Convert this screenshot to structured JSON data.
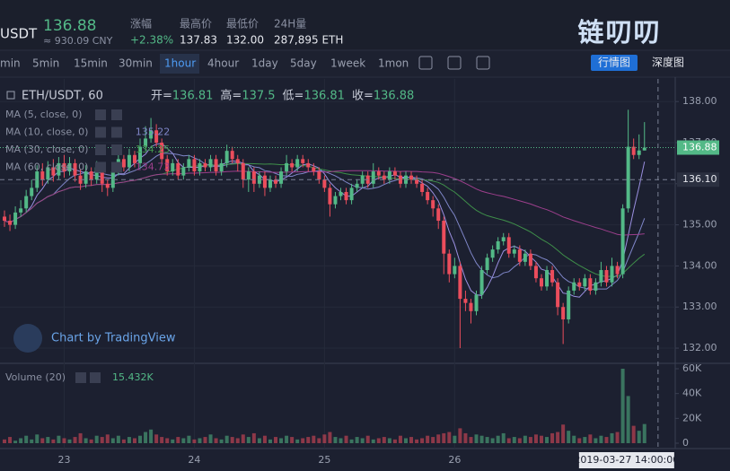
{
  "header": {
    "pair": "USDT",
    "price": "136.88",
    "cny": "≈ 930.09 CNY",
    "stats": [
      {
        "label": "涨幅",
        "value": "+2.38%"
      },
      {
        "label": "最高价",
        "value": "137.83"
      },
      {
        "label": "最低价",
        "value": "132.00"
      },
      {
        "label": "24H量",
        "value": "287,895 ETH"
      }
    ],
    "logo": "链叨叨"
  },
  "toolbar": {
    "intervals": [
      "min",
      "5min",
      "15min",
      "30min",
      "1hour",
      "4hour",
      "1day",
      "5day",
      "1week",
      "1mon"
    ],
    "active": "1hour",
    "buttons": [
      "行情图",
      "深度图"
    ]
  },
  "chart_data": {
    "type": "candlestick",
    "title": "ETH/USDT, 60",
    "watermark": "Chart by TradingView",
    "legend": [
      {
        "label": "开=",
        "key": "open"
      },
      {
        "label": "高=",
        "key": "high"
      },
      {
        "label": "低=",
        "key": "low"
      },
      {
        "label": "收=",
        "key": "close"
      }
    ],
    "up_color": "#53b987",
    "down_color": "#eb4d5c",
    "open": [
      135.2,
      135.1,
      135.0,
      135.3,
      135.4,
      135.7,
      135.9,
      136.3,
      136.1,
      136.4,
      136.2,
      136.5,
      136.3,
      136.5,
      136.2,
      136.0,
      136.3,
      136.1,
      136.4,
      136.0,
      135.9,
      136.3,
      136.6,
      136.4,
      136.7,
      136.5,
      136.9,
      137.1,
      137.3,
      137.0,
      136.6,
      136.3,
      136.5,
      136.2,
      136.4,
      136.6,
      136.3,
      136.5,
      136.4,
      136.6,
      136.3,
      136.5,
      136.8,
      136.6,
      136.5,
      136.1,
      136.3,
      136.0,
      136.2,
      135.9,
      136.1,
      136.0,
      136.3,
      136.5,
      136.4,
      136.6,
      136.5,
      136.4,
      136.3,
      136.1,
      135.9,
      135.5,
      135.7,
      135.8,
      135.6,
      135.9,
      136.0,
      136.2,
      136.0,
      136.3,
      136.2,
      136.1,
      136.3,
      136.2,
      136.0,
      136.2,
      136.1,
      136.0,
      135.8,
      135.6,
      135.4,
      135.1,
      134.3,
      133.8,
      134.0,
      133.2,
      133.1,
      132.9,
      133.3,
      133.9,
      134.2,
      134.4,
      134.6,
      134.7,
      134.3,
      134.4,
      134.1,
      134.3,
      134.0,
      133.7,
      133.5,
      133.9,
      133.6,
      133.0,
      132.7,
      133.4,
      133.6,
      133.5,
      133.7,
      133.4,
      133.6,
      133.9,
      133.6,
      134.0,
      133.8,
      135.4,
      136.9,
      136.7,
      136.81
    ],
    "high": [
      135.35,
      135.25,
      135.45,
      135.6,
      135.85,
      136.1,
      136.45,
      136.5,
      136.55,
      136.6,
      136.65,
      136.7,
      136.65,
      136.6,
      136.35,
      136.45,
      136.4,
      136.55,
      136.5,
      136.1,
      136.4,
      136.75,
      136.7,
      136.85,
      136.8,
      137.1,
      137.4,
      137.6,
      137.45,
      137.1,
      136.7,
      136.6,
      136.6,
      136.5,
      136.7,
      136.7,
      136.6,
      136.6,
      136.7,
      136.7,
      136.6,
      136.95,
      136.9,
      136.7,
      136.6,
      136.4,
      136.4,
      136.3,
      136.3,
      136.2,
      136.2,
      136.4,
      136.7,
      136.6,
      136.7,
      136.7,
      136.6,
      136.5,
      136.4,
      136.2,
      136.0,
      135.8,
      135.9,
      135.9,
      136.0,
      136.1,
      136.3,
      136.3,
      136.5,
      136.4,
      136.3,
      136.4,
      136.4,
      136.3,
      136.3,
      136.3,
      136.2,
      136.1,
      135.9,
      135.7,
      135.5,
      135.2,
      134.4,
      134.2,
      134.1,
      133.4,
      133.2,
      133.4,
      134.0,
      134.3,
      134.5,
      134.7,
      134.8,
      134.8,
      134.5,
      134.5,
      134.4,
      134.4,
      134.1,
      133.8,
      134.0,
      134.0,
      133.7,
      133.1,
      133.5,
      133.7,
      133.7,
      133.8,
      133.8,
      133.7,
      134.1,
      134.0,
      134.2,
      134.1,
      135.5,
      137.8,
      137.1,
      137.2,
      137.5
    ],
    "low": [
      134.95,
      134.85,
      134.9,
      135.2,
      135.3,
      135.6,
      135.8,
      135.95,
      136.0,
      136.05,
      136.1,
      136.15,
      136.2,
      136.05,
      135.85,
      135.9,
      135.95,
      136.0,
      135.8,
      135.7,
      135.8,
      136.2,
      136.3,
      136.3,
      136.4,
      136.4,
      136.8,
      137.0,
      136.9,
      136.5,
      136.2,
      136.2,
      136.1,
      136.1,
      136.3,
      136.2,
      136.2,
      136.3,
      136.3,
      136.2,
      136.2,
      136.4,
      136.5,
      136.3,
      135.9,
      135.8,
      135.8,
      135.9,
      135.7,
      135.8,
      135.9,
      135.9,
      136.2,
      136.3,
      136.3,
      136.4,
      136.3,
      136.2,
      136.0,
      135.8,
      135.2,
      135.4,
      135.6,
      135.5,
      135.5,
      135.8,
      135.9,
      135.9,
      135.9,
      136.1,
      136.0,
      136.0,
      136.1,
      135.9,
      135.9,
      136.0,
      135.9,
      135.7,
      135.5,
      135.2,
      134.9,
      133.8,
      133.6,
      133.7,
      132.0,
      132.9,
      132.6,
      132.8,
      133.2,
      133.8,
      134.1,
      134.3,
      134.5,
      134.2,
      134.2,
      134.0,
      134.0,
      133.9,
      133.6,
      133.4,
      133.4,
      133.5,
      132.8,
      132.1,
      132.6,
      133.3,
      133.4,
      133.4,
      133.3,
      133.3,
      133.5,
      133.5,
      133.5,
      133.7,
      133.7,
      135.3,
      136.6,
      136.6,
      136.81
    ],
    "close": [
      135.1,
      135.0,
      135.3,
      135.4,
      135.7,
      135.9,
      136.3,
      136.1,
      136.4,
      136.2,
      136.5,
      136.3,
      136.5,
      136.2,
      136.0,
      136.3,
      136.1,
      136.4,
      136.0,
      135.9,
      136.3,
      136.6,
      136.4,
      136.7,
      136.5,
      136.9,
      137.1,
      137.3,
      137.0,
      136.6,
      136.3,
      136.5,
      136.2,
      136.4,
      136.6,
      136.3,
      136.5,
      136.4,
      136.6,
      136.3,
      136.5,
      136.8,
      136.6,
      136.5,
      136.1,
      136.3,
      136.0,
      136.2,
      135.9,
      136.1,
      136.0,
      136.3,
      136.5,
      136.4,
      136.6,
      136.5,
      136.4,
      136.3,
      136.1,
      135.9,
      135.5,
      135.7,
      135.8,
      135.6,
      135.9,
      136.0,
      136.2,
      136.0,
      136.3,
      136.2,
      136.1,
      136.3,
      136.2,
      136.0,
      136.2,
      136.1,
      136.0,
      135.8,
      135.6,
      135.4,
      135.1,
      134.3,
      133.8,
      134.0,
      133.2,
      133.1,
      132.9,
      133.3,
      133.9,
      134.2,
      134.4,
      134.6,
      134.7,
      134.3,
      134.4,
      134.1,
      134.3,
      134.0,
      133.7,
      133.5,
      133.9,
      133.6,
      133.0,
      132.7,
      133.4,
      133.6,
      133.5,
      133.7,
      133.4,
      133.6,
      133.9,
      133.6,
      134.0,
      133.8,
      135.4,
      136.9,
      136.7,
      136.81,
      136.88
    ],
    "volume": {
      "name": "Volume (20)",
      "last_label": "15.432K",
      "values": [
        3000,
        5000,
        2000,
        4000,
        6000,
        3000,
        7000,
        4000,
        5000,
        3000,
        6000,
        4000,
        3000,
        5000,
        8000,
        4000,
        3000,
        6000,
        5000,
        7000,
        4000,
        6000,
        3000,
        5000,
        4000,
        6000,
        9000,
        11000,
        7000,
        5000,
        4000,
        3000,
        5000,
        4000,
        6000,
        3000,
        4000,
        5000,
        7000,
        4000,
        3000,
        6000,
        5000,
        4000,
        7000,
        5000,
        8000,
        4000,
        6000,
        3000,
        5000,
        4000,
        6000,
        5000,
        3000,
        4000,
        5000,
        6000,
        4000,
        7000,
        9000,
        5000,
        4000,
        6000,
        3000,
        5000,
        4000,
        6000,
        3000,
        4000,
        5000,
        4000,
        3000,
        6000,
        4000,
        5000,
        3000,
        4000,
        6000,
        5000,
        7000,
        8000,
        9000,
        6000,
        12000,
        8000,
        5000,
        7000,
        6000,
        5000,
        4000,
        6000,
        8000,
        4000,
        5000,
        4000,
        6000,
        5000,
        7000,
        6000,
        5000,
        8000,
        9000,
        15000,
        10000,
        6000,
        4000,
        5000,
        7000,
        4000,
        6000,
        5000,
        8000,
        9000,
        60000,
        38000,
        14000,
        10000,
        15432
      ],
      "ylim": [
        -4340,
        64340
      ],
      "yticks": [
        0,
        {
          "value": 20000,
          "label": "20K"
        },
        {
          "value": 40000,
          "label": "40K"
        },
        {
          "value": 60000,
          "label": "60K"
        }
      ]
    },
    "indicators": [
      {
        "name": "MA (5, close, 0)",
        "period": 5,
        "color": "#9a8fe0"
      },
      {
        "name": "MA (10, close, 0)",
        "period": 10,
        "color": "#7f86c8",
        "value": 135.22
      },
      {
        "name": "MA (30, close, 0)",
        "period": 30,
        "color": "#3f8f4a",
        "value": 134.25
      },
      {
        "name": "MA (60, close, 0)",
        "period": 60,
        "color": "#9c3f8c",
        "value": 134.73
      }
    ],
    "crosshair": {
      "price": {
        "value": 136.1,
        "label": "136.10"
      },
      "time": {
        "value": 120.5,
        "label": "2019-03-27 14:00:00"
      }
    },
    "xlim": [
      -0.83,
      123.67
    ],
    "xticks": [
      {
        "value": 11,
        "label": "23"
      },
      {
        "value": 35,
        "label": "24"
      },
      {
        "value": 59,
        "label": "25"
      },
      {
        "value": 83,
        "label": "26"
      }
    ],
    "ylim": [
      131.63,
      138.55
    ],
    "yticks": [
      {
        "value": 132,
        "label": "132.00"
      },
      {
        "value": 133,
        "label": "133.00"
      },
      {
        "value": 134,
        "label": "134.00"
      },
      {
        "value": 135,
        "label": "135.00"
      },
      {
        "value": 136,
        "label": "136.00"
      },
      {
        "value": 137,
        "label": "137.00"
      },
      {
        "value": 138,
        "label": "138.00"
      }
    ],
    "grid": true
  }
}
